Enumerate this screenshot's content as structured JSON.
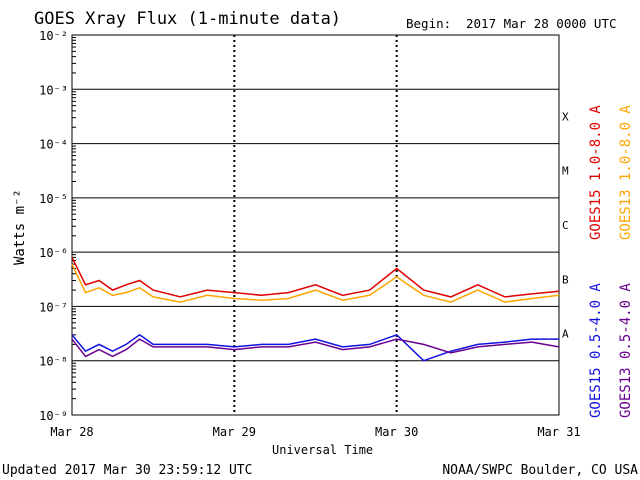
{
  "header": {
    "title": "GOES Xray Flux (1-minute data)",
    "begin_label": "Begin:",
    "begin_value": "2017 Mar 28 0000 UTC"
  },
  "footer": {
    "updated": "Updated 2017 Mar 30 23:59:12 UTC",
    "credit": "NOAA/SWPC Boulder, CO USA"
  },
  "colors": {
    "goes15_long": "#e00000",
    "goes13_long": "#ffa500",
    "goes15_short": "#1010e0",
    "goes13_short": "#6a0090"
  },
  "chart_data": {
    "type": "line",
    "title": "GOES Xray Flux (1-minute data)",
    "xlabel": "Universal Time",
    "ylabel": "Watts m⁻²",
    "y_scale": "log",
    "ylim": [
      1e-09,
      0.01
    ],
    "xlim": [
      "2017-03-28",
      "2017-03-31"
    ],
    "x_ticks": [
      "Mar 28",
      "Mar 29",
      "Mar 30",
      "Mar 31"
    ],
    "y_ticks": [
      "10⁻²",
      "10⁻³",
      "10⁻⁴",
      "10⁻⁵",
      "10⁻⁶",
      "10⁻⁷",
      "10⁻⁸",
      "10⁻⁹"
    ],
    "flare_classes": [
      {
        "label": "X",
        "flux": 0.0001
      },
      {
        "label": "M",
        "flux": 1e-05
      },
      {
        "label": "C",
        "flux": 1e-06
      },
      {
        "label": "B",
        "flux": 1e-07
      },
      {
        "label": "A",
        "flux": 1e-08
      }
    ],
    "grid": "horizontal at each decade",
    "legend_position": "right-side vertical",
    "series": [
      {
        "name": "GOES15 1.0-8.0 A",
        "color": "#e00000",
        "x": [
          "2017-03-28 00:00",
          "2017-03-28 02:00",
          "2017-03-28 04:00",
          "2017-03-28 06:00",
          "2017-03-28 08:00",
          "2017-03-28 10:00",
          "2017-03-28 12:00",
          "2017-03-28 16:00",
          "2017-03-28 20:00",
          "2017-03-29 00:00",
          "2017-03-29 04:00",
          "2017-03-29 08:00",
          "2017-03-29 12:00",
          "2017-03-29 16:00",
          "2017-03-29 20:00",
          "2017-03-30 00:00",
          "2017-03-30 04:00",
          "2017-03-30 08:00",
          "2017-03-30 12:00",
          "2017-03-30 16:00",
          "2017-03-30 20:00",
          "2017-03-30 24:00"
        ],
        "values": [
          8e-07,
          2.5e-07,
          3e-07,
          2e-07,
          2.5e-07,
          3e-07,
          2e-07,
          1.5e-07,
          2e-07,
          1.8e-07,
          1.6e-07,
          1.8e-07,
          2.5e-07,
          1.6e-07,
          2e-07,
          5e-07,
          2e-07,
          1.5e-07,
          2.5e-07,
          1.5e-07,
          1.7e-07,
          1.9e-07
        ]
      },
      {
        "name": "GOES13 1.0-8.0 A",
        "color": "#ffa500",
        "x": [
          "2017-03-28 00:00",
          "2017-03-28 02:00",
          "2017-03-28 04:00",
          "2017-03-28 06:00",
          "2017-03-28 08:00",
          "2017-03-28 10:00",
          "2017-03-28 12:00",
          "2017-03-28 16:00",
          "2017-03-28 20:00",
          "2017-03-29 00:00",
          "2017-03-29 04:00",
          "2017-03-29 08:00",
          "2017-03-29 12:00",
          "2017-03-29 16:00",
          "2017-03-29 20:00",
          "2017-03-30 00:00",
          "2017-03-30 04:00",
          "2017-03-30 08:00",
          "2017-03-30 12:00",
          "2017-03-30 16:00",
          "2017-03-30 20:00",
          "2017-03-30 24:00"
        ],
        "values": [
          6e-07,
          1.8e-07,
          2.2e-07,
          1.6e-07,
          1.8e-07,
          2.2e-07,
          1.5e-07,
          1.2e-07,
          1.6e-07,
          1.4e-07,
          1.3e-07,
          1.4e-07,
          2e-07,
          1.3e-07,
          1.6e-07,
          3.5e-07,
          1.6e-07,
          1.2e-07,
          2e-07,
          1.2e-07,
          1.4e-07,
          1.6e-07
        ]
      },
      {
        "name": "GOES15 0.5-4.0 A",
        "color": "#1010e0",
        "x": [
          "2017-03-28 00:00",
          "2017-03-28 02:00",
          "2017-03-28 04:00",
          "2017-03-28 06:00",
          "2017-03-28 08:00",
          "2017-03-28 10:00",
          "2017-03-28 12:00",
          "2017-03-28 16:00",
          "2017-03-28 20:00",
          "2017-03-29 00:00",
          "2017-03-29 04:00",
          "2017-03-29 08:00",
          "2017-03-29 12:00",
          "2017-03-29 16:00",
          "2017-03-29 20:00",
          "2017-03-30 00:00",
          "2017-03-30 04:00",
          "2017-03-30 08:00",
          "2017-03-30 12:00",
          "2017-03-30 16:00",
          "2017-03-30 20:00",
          "2017-03-30 24:00"
        ],
        "values": [
          3e-08,
          1.5e-08,
          2e-08,
          1.5e-08,
          2e-08,
          3e-08,
          2e-08,
          2e-08,
          2e-08,
          1.8e-08,
          2e-08,
          2e-08,
          2.5e-08,
          1.8e-08,
          2e-08,
          3e-08,
          1e-08,
          1.5e-08,
          2e-08,
          2.2e-08,
          2.5e-08,
          2.5e-08
        ]
      },
      {
        "name": "GOES13 0.5-4.0 A",
        "color": "#6a0090",
        "x": [
          "2017-03-28 00:00",
          "2017-03-28 02:00",
          "2017-03-28 04:00",
          "2017-03-28 06:00",
          "2017-03-28 08:00",
          "2017-03-28 10:00",
          "2017-03-28 12:00",
          "2017-03-28 16:00",
          "2017-03-28 20:00",
          "2017-03-29 00:00",
          "2017-03-29 04:00",
          "2017-03-29 08:00",
          "2017-03-29 12:00",
          "2017-03-29 16:00",
          "2017-03-29 20:00",
          "2017-03-30 00:00",
          "2017-03-30 04:00",
          "2017-03-30 08:00",
          "2017-03-30 12:00",
          "2017-03-30 16:00",
          "2017-03-30 20:00",
          "2017-03-30 24:00"
        ],
        "values": [
          2.5e-08,
          1.2e-08,
          1.6e-08,
          1.2e-08,
          1.6e-08,
          2.5e-08,
          1.8e-08,
          1.8e-08,
          1.8e-08,
          1.6e-08,
          1.8e-08,
          1.8e-08,
          2.2e-08,
          1.6e-08,
          1.8e-08,
          2.5e-08,
          2e-08,
          1.4e-08,
          1.8e-08,
          2e-08,
          2.2e-08,
          1.8e-08
        ]
      }
    ]
  }
}
